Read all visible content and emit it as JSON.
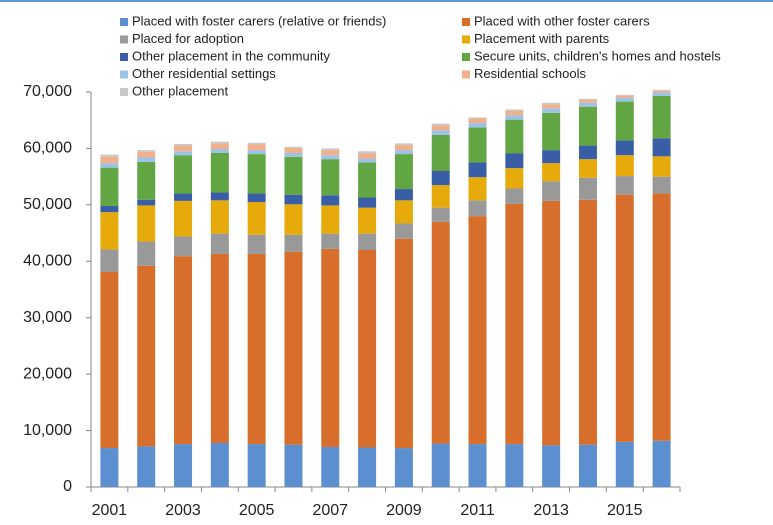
{
  "chart_data": {
    "type": "stacked_bar",
    "categories": [
      "2001",
      null,
      "2003",
      null,
      "2005",
      null,
      "2007",
      null,
      "2009",
      null,
      "2011",
      null,
      "2013",
      null,
      "2015",
      null
    ],
    "series": [
      {
        "name": "Placed with foster carers (relative or friends)",
        "color": "#5b8fcf",
        "values": [
          6900,
          7200,
          7600,
          7800,
          7600,
          7500,
          7100,
          7000,
          6900,
          7700,
          7600,
          7600,
          7400,
          7500,
          8000,
          8200
        ]
      },
      {
        "name": "Placed with other foster carers",
        "color": "#d86e2c",
        "values": [
          31200,
          32000,
          33300,
          33500,
          33700,
          34200,
          35100,
          35000,
          37100,
          39300,
          40400,
          42600,
          43300,
          43400,
          43800,
          43800
        ]
      },
      {
        "name": "Placed for adoption",
        "color": "#999999",
        "values": [
          4000,
          4300,
          3500,
          3600,
          3400,
          3000,
          2700,
          2900,
          2700,
          2500,
          2800,
          2700,
          3500,
          3900,
          3300,
          3000
        ]
      },
      {
        "name": "Placement with parents",
        "color": "#e6ab0b",
        "values": [
          6600,
          6400,
          6300,
          5900,
          5800,
          5400,
          5000,
          4600,
          4100,
          4000,
          4100,
          3600,
          3200,
          3300,
          3700,
          3600
        ]
      },
      {
        "name": "Other placement in the community",
        "color": "#3a5ea6",
        "values": [
          1100,
          1000,
          1300,
          1400,
          1500,
          1700,
          1800,
          1800,
          2000,
          2500,
          2600,
          2600,
          2300,
          2400,
          2600,
          3200
        ]
      },
      {
        "name": "Secure units, children's homes and hostels",
        "color": "#62a543",
        "values": [
          6800,
          6700,
          6800,
          7000,
          7000,
          6700,
          6400,
          6200,
          6200,
          6400,
          6200,
          6000,
          6600,
          6900,
          6900,
          7500
        ]
      },
      {
        "name": "Other residential settings",
        "color": "#9cc2e8",
        "values": [
          800,
          800,
          700,
          700,
          700,
          700,
          700,
          700,
          700,
          800,
          800,
          800,
          800,
          700,
          700,
          600
        ]
      },
      {
        "name": "Residential schools",
        "color": "#f2b08a",
        "values": [
          1100,
          1000,
          1000,
          1000,
          1000,
          900,
          900,
          900,
          900,
          900,
          800,
          800,
          700,
          500,
          400,
          300
        ]
      },
      {
        "name": "Other placement",
        "color": "#c8c8c8",
        "values": [
          400,
          300,
          300,
          300,
          300,
          200,
          300,
          400,
          300,
          300,
          200,
          200,
          300,
          200,
          100,
          200
        ]
      }
    ],
    "ylim": [
      0,
      70000
    ],
    "yticks": [
      0,
      {
        "value": 10000,
        "label": "10,000"
      },
      {
        "value": 20000,
        "label": "20,000"
      },
      {
        "value": 30000,
        "label": "30,000"
      },
      {
        "value": 40000,
        "label": "40,000"
      },
      {
        "value": 50000,
        "label": "50,000"
      },
      {
        "value": 60000,
        "label": "60,000"
      },
      {
        "value": 70000,
        "label": "70,000"
      }
    ],
    "grid": false
  }
}
